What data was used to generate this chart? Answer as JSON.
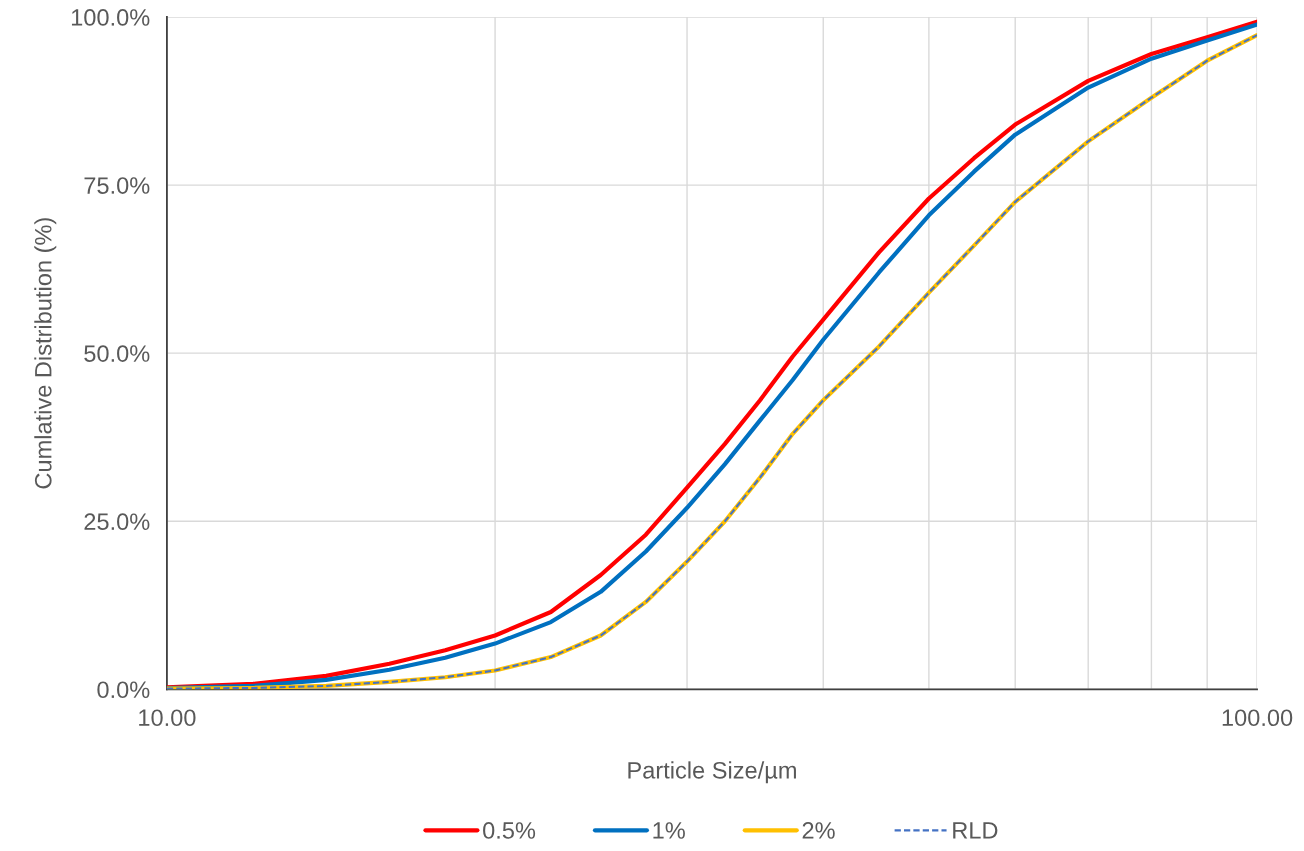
{
  "chart_data": {
    "type": "line",
    "xlabel": "Particle Size/µm",
    "ylabel": "Cumlative Distribution (%)",
    "x": [
      10,
      12,
      14,
      16,
      18,
      20,
      22.5,
      25,
      27.5,
      30,
      32.5,
      35,
      37.5,
      40,
      45,
      50,
      55,
      60,
      70,
      80,
      90,
      100
    ],
    "series": [
      {
        "name": "0.5%",
        "color": "#ff0000",
        "line_style": "solid",
        "values": [
          0.3,
          0.8,
          2.0,
          3.8,
          5.8,
          8.0,
          11.5,
          17,
          23,
          30,
          36.5,
          43,
          49.5,
          55,
          65,
          73,
          79,
          84,
          90.5,
          94.5,
          97,
          99.3
        ]
      },
      {
        "name": "1%",
        "color": "#0070c0",
        "line_style": "solid",
        "values": [
          0.2,
          0.5,
          1.4,
          2.9,
          4.7,
          6.8,
          10,
          14.5,
          20.5,
          27,
          33.5,
          40,
          46,
          52,
          62,
          70.5,
          77,
          82.5,
          89.5,
          93.8,
          96.5,
          98.9
        ]
      },
      {
        "name": "2%",
        "color": "#ffc000",
        "line_style": "solid",
        "values": [
          0.1,
          0.2,
          0.5,
          1.1,
          1.8,
          2.8,
          4.8,
          8,
          13,
          19,
          25,
          31.5,
          38,
          43,
          51,
          59,
          66,
          72.5,
          81.5,
          88,
          93.5,
          97.3
        ]
      },
      {
        "name": "RLD",
        "color": "#4472c4",
        "line_style": "dashed",
        "values": [
          0.1,
          0.2,
          0.5,
          1.1,
          1.8,
          2.8,
          4.8,
          8,
          13,
          19,
          25,
          31.5,
          38,
          43,
          51,
          59,
          66,
          72.5,
          81.5,
          88,
          93.5,
          97.3
        ]
      }
    ],
    "log": "x",
    "xlim": [
      10,
      100
    ],
    "ylim": [
      0,
      100
    ],
    "xticks": [
      {
        "value": 10,
        "label": "10.00"
      },
      {
        "value": 20,
        "label": null
      },
      {
        "value": 30,
        "label": null
      },
      {
        "value": 40,
        "label": null
      },
      {
        "value": 50,
        "label": null
      },
      {
        "value": 60,
        "label": null
      },
      {
        "value": 70,
        "label": null
      },
      {
        "value": 80,
        "label": null
      },
      {
        "value": 90,
        "label": null
      },
      {
        "value": 100,
        "label": "100.00"
      }
    ],
    "yticks": [
      {
        "value": 0,
        "label": "0.0%"
      },
      {
        "value": 25,
        "label": "25.0%"
      },
      {
        "value": 50,
        "label": "50.0%"
      },
      {
        "value": 75,
        "label": "75.0%"
      },
      {
        "value": 100,
        "label": "100.0%"
      }
    ],
    "grid": true,
    "legend": "bottom"
  }
}
